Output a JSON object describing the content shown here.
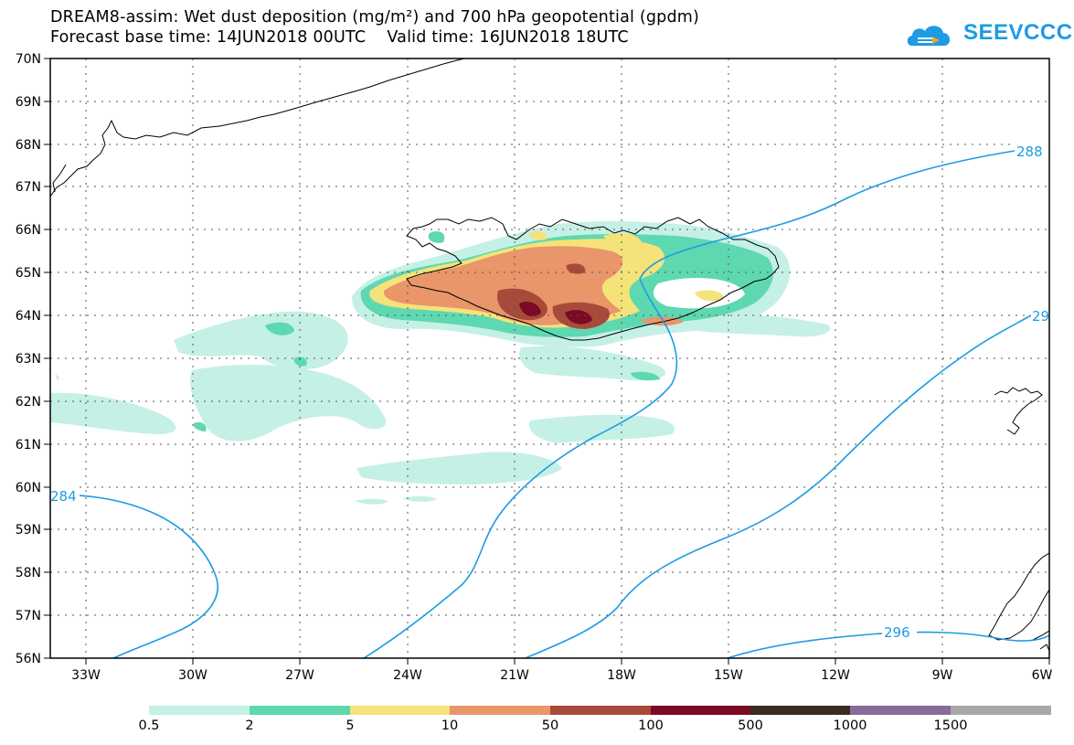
{
  "title": {
    "line1": "DREAM8-assim: Wet dust deposition (mg/m²) and 700 hPa geopotential (gpdm)",
    "line2": "Forecast base time: 14JUN2018 00UTC    Valid time: 16JUN2018 18UTC"
  },
  "logo": {
    "text": "SEEVCCC",
    "icon": "cloud-icon",
    "color": "#1d9be3"
  },
  "map": {
    "lat_labels": [
      "70N",
      "69N",
      "68N",
      "67N",
      "66N",
      "65N",
      "64N",
      "63N",
      "62N",
      "61N",
      "60N",
      "59N",
      "58N",
      "57N",
      "56N"
    ],
    "lon_labels": [
      "33W",
      "30W",
      "27W",
      "24W",
      "21W",
      "18W",
      "15W",
      "12W",
      "9W",
      "6W"
    ],
    "contour_labels": [
      "288",
      "29",
      "284",
      "296"
    ],
    "contour_color": "#1d9be3"
  },
  "legend": {
    "colors": [
      "#c5f0e6",
      "#5ed8b0",
      "#f5e37a",
      "#e8966a",
      "#a84a3a",
      "#7a0a25",
      "#3a2a20",
      "#8a6a9a",
      "#a8a8a8"
    ],
    "ticks": [
      "0.5",
      "2",
      "5",
      "10",
      "50",
      "100",
      "500",
      "1000",
      "1500"
    ]
  }
}
